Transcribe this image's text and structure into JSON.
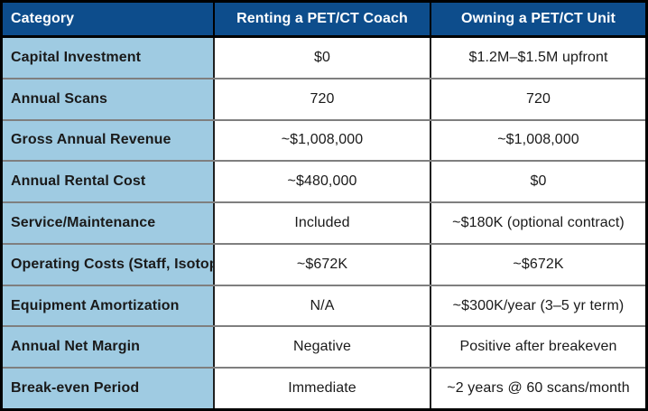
{
  "chart_data": {
    "type": "table",
    "title": "Renting vs Owning PET/CT comparison table",
    "columns": [
      "Category",
      "Renting a PET/CT Coach",
      "Owning a PET/CT Unit"
    ],
    "rows": [
      [
        "Capital Investment",
        "$0",
        "$1.2M–$1.5M upfront"
      ],
      [
        "Annual Scans",
        "720",
        "720"
      ],
      [
        "Gross Annual Revenue",
        "~$1,008,000",
        "~$1,008,000"
      ],
      [
        "Annual Rental Cost",
        "~$480,000",
        "$0"
      ],
      [
        "Service/Maintenance",
        "Included",
        "~$180K (optional contract)"
      ],
      [
        "Operating Costs (Staff, Isotop",
        "~$672K",
        "~$672K"
      ],
      [
        "Equipment Amortization",
        "N/A",
        "~$300K/year (3–5 yr term)"
      ],
      [
        "Annual Net Margin",
        "Negative",
        "Positive after breakeven"
      ],
      [
        "Break-even Period",
        "Immediate",
        "~2 years @ 60 scans/month"
      ]
    ],
    "layout": {
      "legend": "none",
      "grid": "full-borders"
    }
  },
  "colors": {
    "header_bg": "#0D4D8C",
    "header_text": "#FFFFFF",
    "category_bg": "#9FCBE2",
    "body_bg": "#FFFFFF",
    "body_text": "#1A1A1A",
    "outer_border": "#000000",
    "row_divider": "#7F7F7F",
    "col_divider": "#1F1F1F"
  }
}
